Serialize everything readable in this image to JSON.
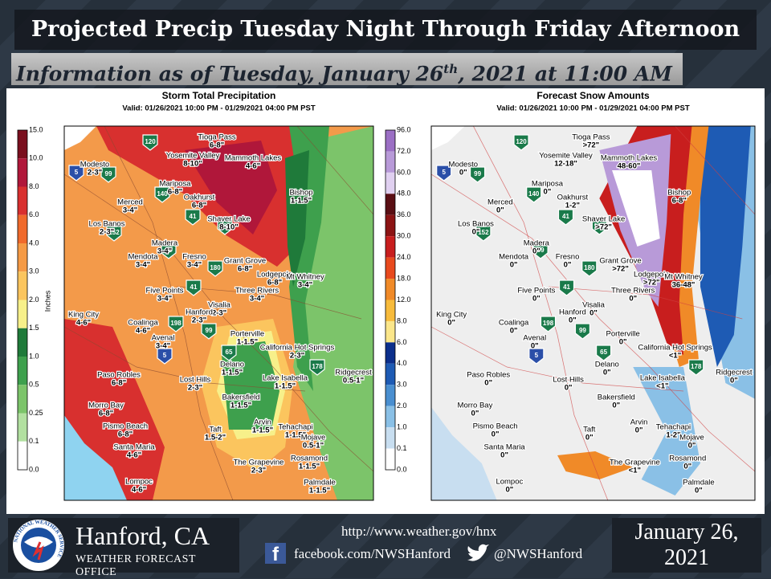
{
  "header": {
    "title": "Projected Precip Tuesday Night Through Friday Afternoon",
    "subtitle": {
      "before": "Information as of Tuesday, January 26",
      "sup": "th",
      "after": ", 2021 at 11:00 AM PST"
    }
  },
  "maps": [
    {
      "title": "Storm Total Precipitation",
      "valid": "Valid: 01/26/2021 10:00 PM - 01/29/2021 04:00 PM PST",
      "legend_label": "Inches",
      "legend": {
        "labels": [
          "15.0",
          "10.0",
          "8.0",
          "6.0",
          "4.0",
          "3.0",
          "2.0",
          "1.5",
          "1.0",
          "0.5",
          "0.25",
          "0.1",
          "0.0"
        ],
        "colors": [
          "#7a0f1e",
          "#b0173a",
          "#d8302f",
          "#f06a2c",
          "#f59a45",
          "#fbc55e",
          "#f7f08a",
          "#1f7a3a",
          "#3ea04d",
          "#7cc46a",
          "#b2e0a0",
          "#ffffff"
        ]
      },
      "cities": [
        {
          "name": "Tioga Pass",
          "value": "6-8\""
        },
        {
          "name": "Modesto",
          "value": "2-3\""
        },
        {
          "name": "Yosemite Valley",
          "value": "8-10\""
        },
        {
          "name": "Mammoth Lakes",
          "value": "4-6\""
        },
        {
          "name": "Mariposa",
          "value": "6-8\""
        },
        {
          "name": "Oakhurst",
          "value": "6-8\""
        },
        {
          "name": "Bishop",
          "value": "1-1.5\""
        },
        {
          "name": "Merced",
          "value": "3-4\""
        },
        {
          "name": "Shaver Lake",
          "value": "8-10\""
        },
        {
          "name": "Los Banos",
          "value": "2-3\""
        },
        {
          "name": "Madera",
          "value": "3-4\""
        },
        {
          "name": "Mendota",
          "value": "3-4\""
        },
        {
          "name": "Fresno",
          "value": "3-4\""
        },
        {
          "name": "Grant Grove",
          "value": "6-8\""
        },
        {
          "name": "Lodgepole",
          "value": "6-8\""
        },
        {
          "name": "Mt Whitney",
          "value": "3-4\""
        },
        {
          "name": "Five Points",
          "value": "3-4\""
        },
        {
          "name": "Three Rivers",
          "value": "3-4\""
        },
        {
          "name": "Visalia",
          "value": "2-3\""
        },
        {
          "name": "Hanford",
          "value": "2-3\""
        },
        {
          "name": "King City",
          "value": "4-6\""
        },
        {
          "name": "Coalinga",
          "value": "4-6\""
        },
        {
          "name": "Avenal",
          "value": "3-4\""
        },
        {
          "name": "Porterville",
          "value": "1-1.5\""
        },
        {
          "name": "California Hot Springs",
          "value": "2-3\""
        },
        {
          "name": "Delano",
          "value": "1-1.5\""
        },
        {
          "name": "Ridgecrest",
          "value": "0.5-1\""
        },
        {
          "name": "Paso Robles",
          "value": "6-8\""
        },
        {
          "name": "Lost Hills",
          "value": "2-3\""
        },
        {
          "name": "Lake Isabella",
          "value": "1-1.5\""
        },
        {
          "name": "Bakersfield",
          "value": "1-1.5\""
        },
        {
          "name": "Morro Bay",
          "value": "6-8\""
        },
        {
          "name": "Pismo Beach",
          "value": "6-8\""
        },
        {
          "name": "Arvin",
          "value": "1-1.5\""
        },
        {
          "name": "Tehachapi",
          "value": "1-1.5\""
        },
        {
          "name": "Mojave",
          "value": "0.5-1\""
        },
        {
          "name": "Taft",
          "value": "1.5-2\""
        },
        {
          "name": "Santa Maria",
          "value": "4-6\""
        },
        {
          "name": "The Grapevine",
          "value": "2-3\""
        },
        {
          "name": "Rosamond",
          "value": "1-1.5\""
        },
        {
          "name": "Lompoc",
          "value": "4-6\""
        },
        {
          "name": "Palmdale",
          "value": "1-1.5\""
        }
      ]
    },
    {
      "title": "Forecast Snow Amounts",
      "valid": "Valid: 01/26/2021 10:00 PM - 01/29/2021 04:00 PM PST",
      "legend": {
        "labels": [
          "96.0",
          "72.0",
          "60.0",
          "48.0",
          "36.0",
          "30.0",
          "24.0",
          "18.0",
          "12.0",
          "8.0",
          "6.0",
          "4.0",
          "3.0",
          "2.0",
          "1.0",
          "0.1",
          "0.0"
        ],
        "colors": [
          "#9b6fc4",
          "#b89ad8",
          "#e0d0f0",
          "#5a0f14",
          "#8c1414",
          "#c81e1e",
          "#e84a1e",
          "#f08a28",
          "#f7bb3c",
          "#fbe68a",
          "#0c2f8c",
          "#1e5bb4",
          "#4a8fd0",
          "#8ac0e6",
          "#c8def0",
          "#ffffff"
        ]
      },
      "cities": [
        {
          "name": "Tioga Pass",
          "value": ">72\""
        },
        {
          "name": "Modesto",
          "value": "0\""
        },
        {
          "name": "Yosemite Valley",
          "value": "12-18\""
        },
        {
          "name": "Mammoth Lakes",
          "value": "48-60\""
        },
        {
          "name": "Mariposa",
          "value": "0\""
        },
        {
          "name": "Oakhurst",
          "value": "1-2\""
        },
        {
          "name": "Bishop",
          "value": "6-8\""
        },
        {
          "name": "Merced",
          "value": "0\""
        },
        {
          "name": "Shaver Lake",
          "value": ">72\""
        },
        {
          "name": "Los Banos",
          "value": "0\""
        },
        {
          "name": "Madera",
          "value": "0\""
        },
        {
          "name": "Mendota",
          "value": "0\""
        },
        {
          "name": "Fresno",
          "value": "0\""
        },
        {
          "name": "Grant Grove",
          "value": ">72\""
        },
        {
          "name": "Lodgepole",
          "value": ">72\""
        },
        {
          "name": "Mt Whitney",
          "value": "36-48\""
        },
        {
          "name": "Five Points",
          "value": "0\""
        },
        {
          "name": "Three Rivers",
          "value": "0\""
        },
        {
          "name": "Visalia",
          "value": "0\""
        },
        {
          "name": "Hanford",
          "value": "0\""
        },
        {
          "name": "King City",
          "value": "0\""
        },
        {
          "name": "Coalinga",
          "value": "0\""
        },
        {
          "name": "Avenal",
          "value": "0\""
        },
        {
          "name": "Porterville",
          "value": "0\""
        },
        {
          "name": "California Hot Springs",
          "value": "<1\""
        },
        {
          "name": "Delano",
          "value": "0\""
        },
        {
          "name": "Ridgecrest",
          "value": "0\""
        },
        {
          "name": "Paso Robles",
          "value": "0\""
        },
        {
          "name": "Lost Hills",
          "value": "0\""
        },
        {
          "name": "Lake Isabella",
          "value": "<1\""
        },
        {
          "name": "Bakersfield",
          "value": "0\""
        },
        {
          "name": "Morro Bay",
          "value": "0\""
        },
        {
          "name": "Pismo Beach",
          "value": "0\""
        },
        {
          "name": "Arvin",
          "value": "0\""
        },
        {
          "name": "Tehachapi",
          "value": "1-2\""
        },
        {
          "name": "Mojave",
          "value": "0\""
        },
        {
          "name": "Taft",
          "value": "0\""
        },
        {
          "name": "Santa Maria",
          "value": "0\""
        },
        {
          "name": "The Grapevine",
          "value": "<1\""
        },
        {
          "name": "Rosamond",
          "value": "0\""
        },
        {
          "name": "Lompoc",
          "value": "0\""
        },
        {
          "name": "Palmdale",
          "value": "0\""
        }
      ]
    }
  ],
  "highways": [
    "120",
    "5",
    "99",
    "140",
    "41",
    "168",
    "152",
    "99",
    "180",
    "41",
    "198",
    "99",
    "5",
    "65",
    "178"
  ],
  "footer": {
    "logo_text": "NATIONAL WEATHER SERVICE",
    "office": "Hanford, CA",
    "office_type": "WEATHER FORECAST OFFICE",
    "url": "http://www.weather.gov/hnx",
    "facebook": "facebook.com/NWSHanford",
    "twitter": "@NWSHanford",
    "date_line1": "January 26,",
    "date_line2": "2021"
  }
}
